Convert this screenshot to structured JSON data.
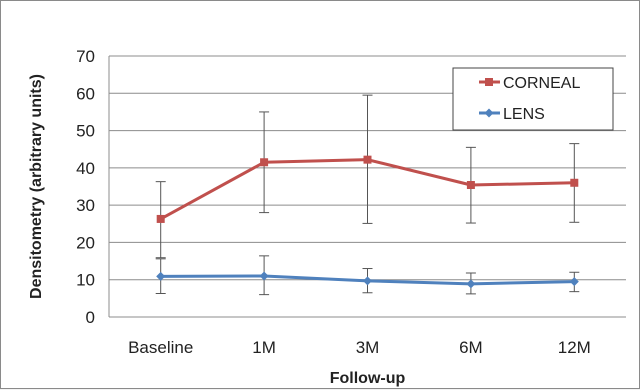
{
  "chart_data": {
    "type": "line",
    "title": "",
    "xlabel": "Follow-up",
    "ylabel": "Densitometry (arbitrary units)",
    "categories": [
      "Baseline",
      "1M",
      "3M",
      "6M",
      "12M"
    ],
    "ylim": [
      0,
      70
    ],
    "yticks": [
      0,
      10,
      20,
      30,
      40,
      50,
      60,
      70
    ],
    "grid": "horizontal",
    "legend_position": "top-right",
    "series": [
      {
        "name": "CORNEAL",
        "color": "#c0504d",
        "marker": "square",
        "values": [
          26.3,
          41.5,
          42.2,
          35.4,
          36.0
        ],
        "error_low": [
          15.9,
          28.0,
          25.1,
          25.2,
          25.4
        ],
        "error_high": [
          36.3,
          55.0,
          59.5,
          45.5,
          46.5
        ]
      },
      {
        "name": "LENS",
        "color": "#4f81bd",
        "marker": "diamond",
        "values": [
          10.9,
          11.0,
          9.7,
          8.9,
          9.5
        ],
        "error_low": [
          6.3,
          6.0,
          6.5,
          6.2,
          6.8
        ],
        "error_high": [
          15.6,
          16.4,
          13.0,
          11.8,
          12.0
        ]
      }
    ]
  }
}
